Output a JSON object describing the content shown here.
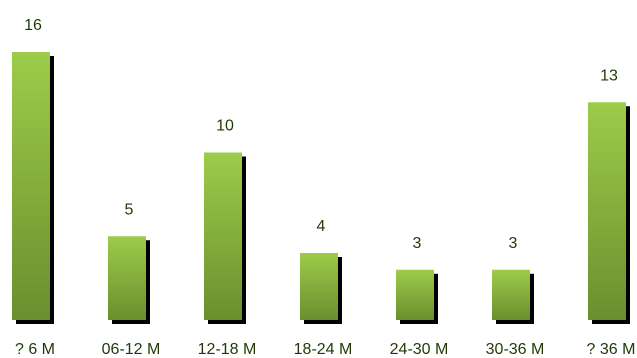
{
  "chart_data": {
    "type": "bar",
    "categories": [
      "? 6 M",
      "06-12 M",
      "12-18 M",
      "18-24 M",
      "24-30 M",
      "30-36 M",
      "? 36 M"
    ],
    "values": [
      16,
      5,
      10,
      4,
      3,
      3,
      13
    ],
    "title": "",
    "xlabel": "",
    "ylabel": "",
    "ylim": [
      0,
      16
    ],
    "grid": false,
    "legend": "none",
    "colors": {
      "bar_top": "#9ccc4a",
      "bar_bottom": "#6a8f2e",
      "bar_shadow": "#000000",
      "label_text": "#1f3a06"
    }
  }
}
